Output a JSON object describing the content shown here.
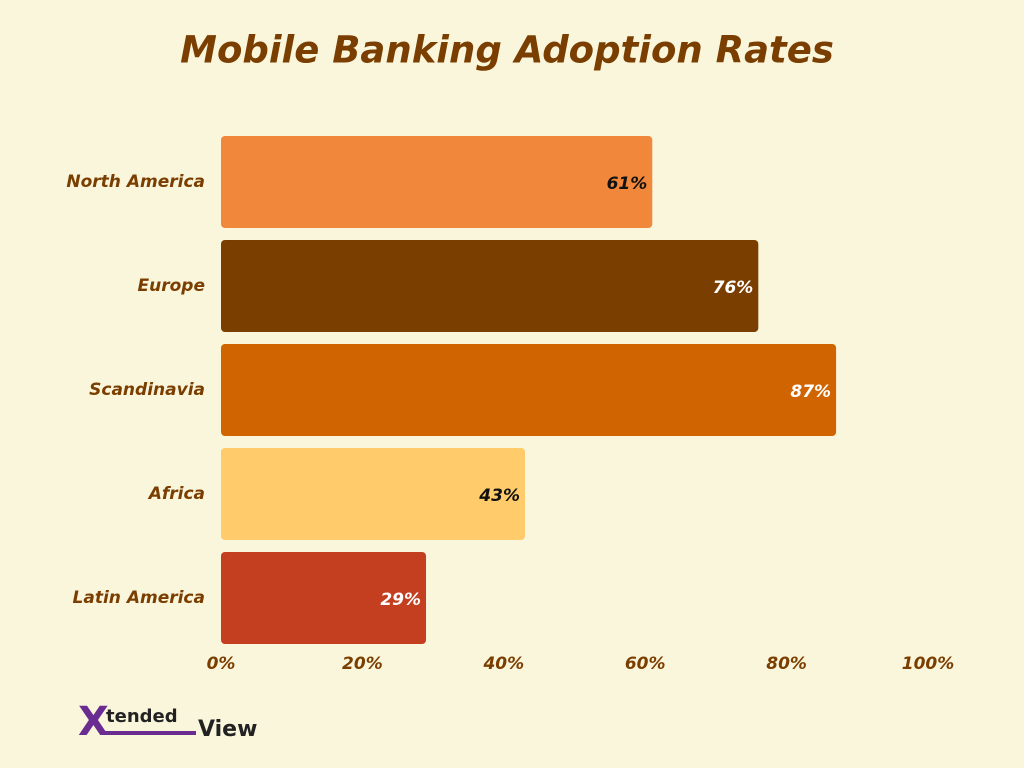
{
  "chart_data": {
    "type": "hbar",
    "title": "Mobile Banking Adoption Rates",
    "categories": [
      "North America",
      "Europe",
      "Scandinavia",
      "Africa",
      "Latin America"
    ],
    "values": [
      61,
      76,
      87,
      43,
      29
    ],
    "value_labels": [
      "61%",
      "76%",
      "87%",
      "43%",
      "29%"
    ],
    "colors": [
      "#f0873a",
      "#7a3e00",
      "#d06400",
      "#ffcb6b",
      "#c43e20"
    ],
    "xlim": [
      0,
      100
    ],
    "xticks": [
      {
        "value": 0,
        "label": "0%"
      },
      {
        "value": 20,
        "label": "20%"
      },
      {
        "value": 40,
        "label": "40%"
      },
      {
        "value": 60,
        "label": "60%"
      },
      {
        "value": 80,
        "label": "80%"
      },
      {
        "value": 100,
        "label": "100%"
      }
    ],
    "grid": false
  },
  "logo": {
    "mark": "X",
    "word": "tended",
    "tail": "View"
  }
}
